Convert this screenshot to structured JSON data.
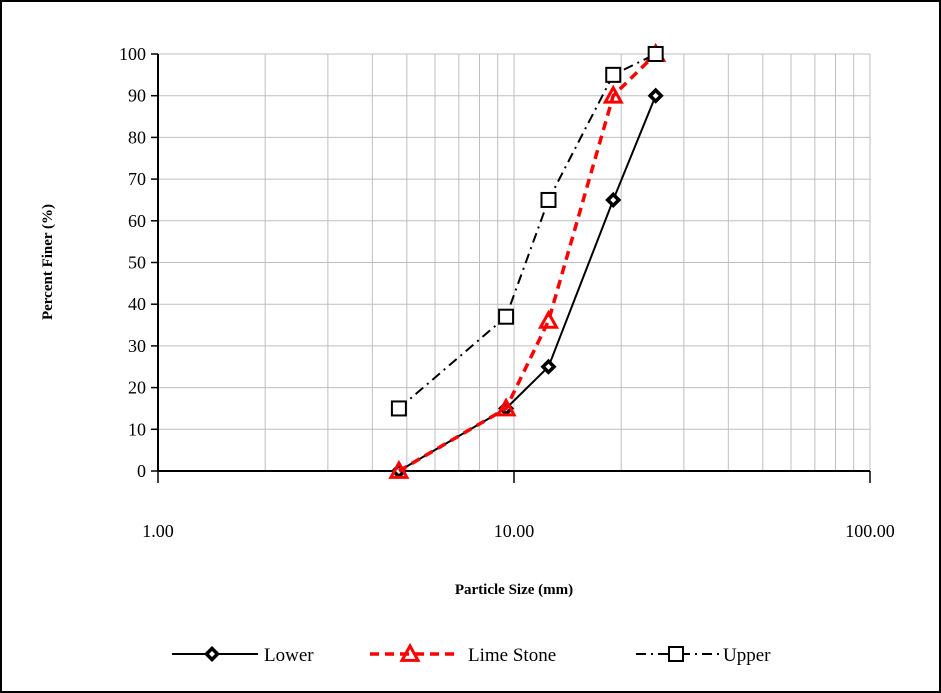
{
  "chart_data": {
    "type": "line",
    "xlabel": "Particle Size (mm)",
    "ylabel": "Percent Finer (%)",
    "x_scale": "log",
    "xlim": [
      1,
      100
    ],
    "ylim": [
      0,
      100
    ],
    "x_ticks": [
      "1.00",
      "10.00",
      "100.00"
    ],
    "y_ticks": [
      "0",
      "10",
      "20",
      "30",
      "40",
      "50",
      "60",
      "70",
      "80",
      "90",
      "100"
    ],
    "grid": true,
    "legend_position": "bottom",
    "series": [
      {
        "name": "Lower",
        "color": "#000000",
        "marker": "diamond",
        "line_style": "solid",
        "x": [
          4.75,
          9.5,
          12.5,
          19,
          25
        ],
        "y": [
          0,
          15,
          25,
          65,
          90
        ]
      },
      {
        "name": "Lime Stone",
        "color": "#ff0000",
        "marker": "triangle",
        "line_style": "dashed",
        "x": [
          4.75,
          9.5,
          12.5,
          19,
          25
        ],
        "y": [
          0,
          15,
          36,
          90,
          100
        ]
      },
      {
        "name": "Upper",
        "color": "#000000",
        "marker": "square",
        "line_style": "dash-dot",
        "x": [
          4.75,
          9.5,
          12.5,
          19,
          25
        ],
        "y": [
          15,
          37,
          65,
          95,
          100
        ]
      }
    ]
  }
}
